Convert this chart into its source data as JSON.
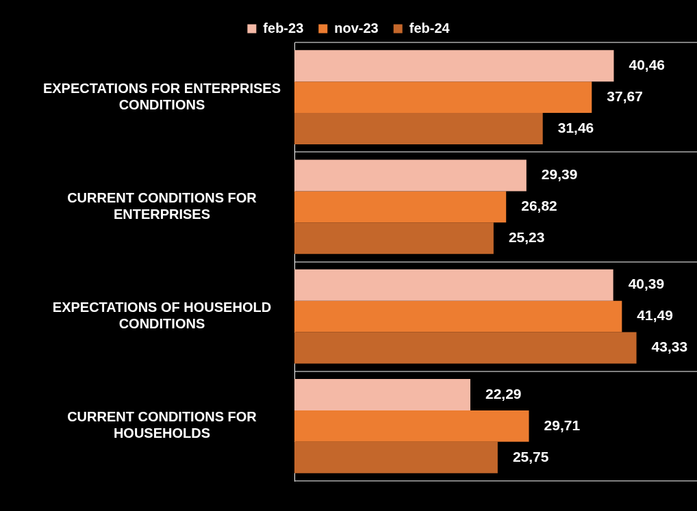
{
  "chart_data": {
    "type": "bar",
    "orientation": "horizontal",
    "categories": [
      "EXPECTATIONS FOR ENTERPRISES CONDITIONS",
      "CURRENT CONDITIONS FOR ENTERPRISES",
      "EXPECTATIONS OF HOUSEHOLD CONDITIONS",
      "CURRENT CONDITIONS FOR HOUSEHOLDS"
    ],
    "series": [
      {
        "name": "feb-23",
        "color": "#f4b9a6",
        "values": [
          40.46,
          29.39,
          40.39,
          22.29
        ],
        "value_labels": [
          "40,46",
          "29,39",
          "40,39",
          "22,29"
        ]
      },
      {
        "name": "nov-23",
        "color": "#ed7d31",
        "values": [
          37.67,
          26.82,
          41.49,
          29.71
        ],
        "value_labels": [
          "37,67",
          "26,82",
          "41,49",
          "29,71"
        ]
      },
      {
        "name": "feb-24",
        "color": "#c4672b",
        "values": [
          31.46,
          25.23,
          43.33,
          25.75
        ],
        "value_labels": [
          "31,46",
          "25,23",
          "43,33",
          "25,75"
        ]
      }
    ],
    "xlim": [
      0,
      51
    ],
    "grid": "y",
    "legend": "top",
    "tick_labels": "y"
  }
}
